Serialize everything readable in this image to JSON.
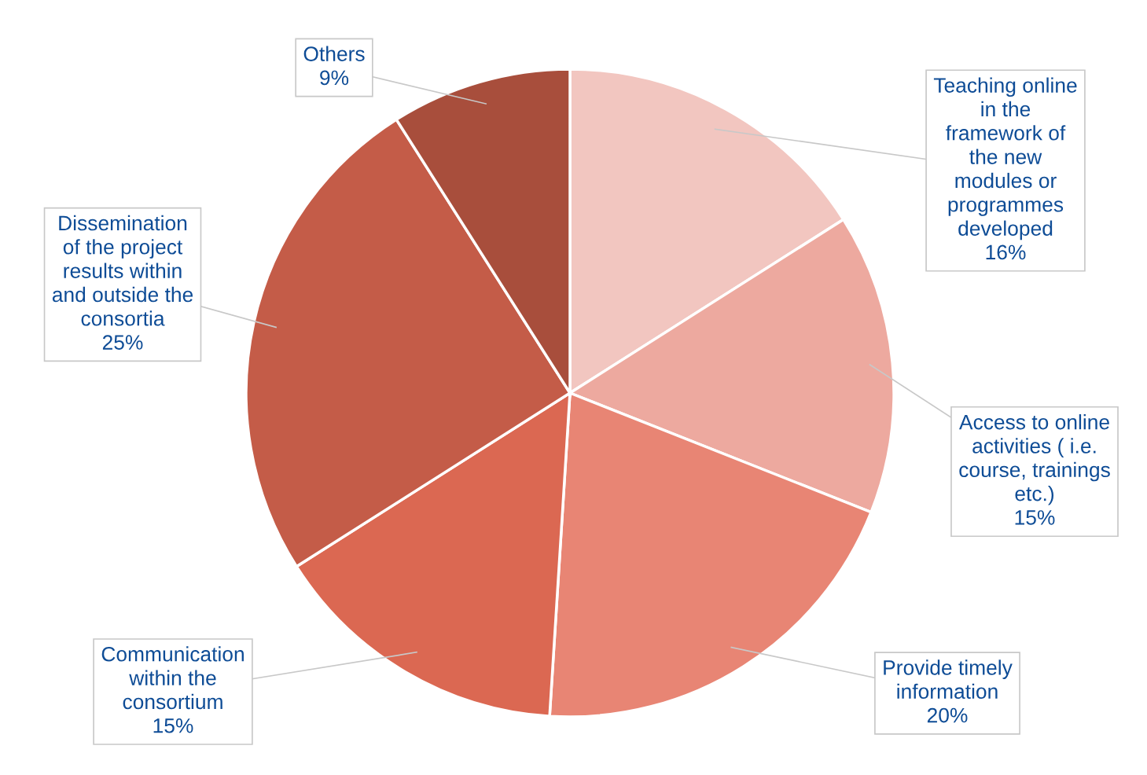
{
  "chart_data": {
    "type": "pie",
    "categories": [
      "Teaching online\nin the\nframework of\nthe new\nmodules or\nprogrammes\ndeveloped",
      "Access to online\nactivities ( i.e.\ncourse, trainings\netc.)",
      "Provide timely\ninformation",
      "Communication\nwithin the\nconsortium",
      "Dissemination\nof the project\nresults within\nand outside the\nconsortia",
      "Others"
    ],
    "values": [
      16,
      15,
      20,
      15,
      25,
      9
    ],
    "colors": [
      "#f2c6c0",
      "#eda99f",
      "#e88574",
      "#db6852",
      "#c45c48",
      "#a84e3c"
    ],
    "value_labels": [
      "16%",
      "15%",
      "20%",
      "15%",
      "25%",
      "9%"
    ]
  }
}
